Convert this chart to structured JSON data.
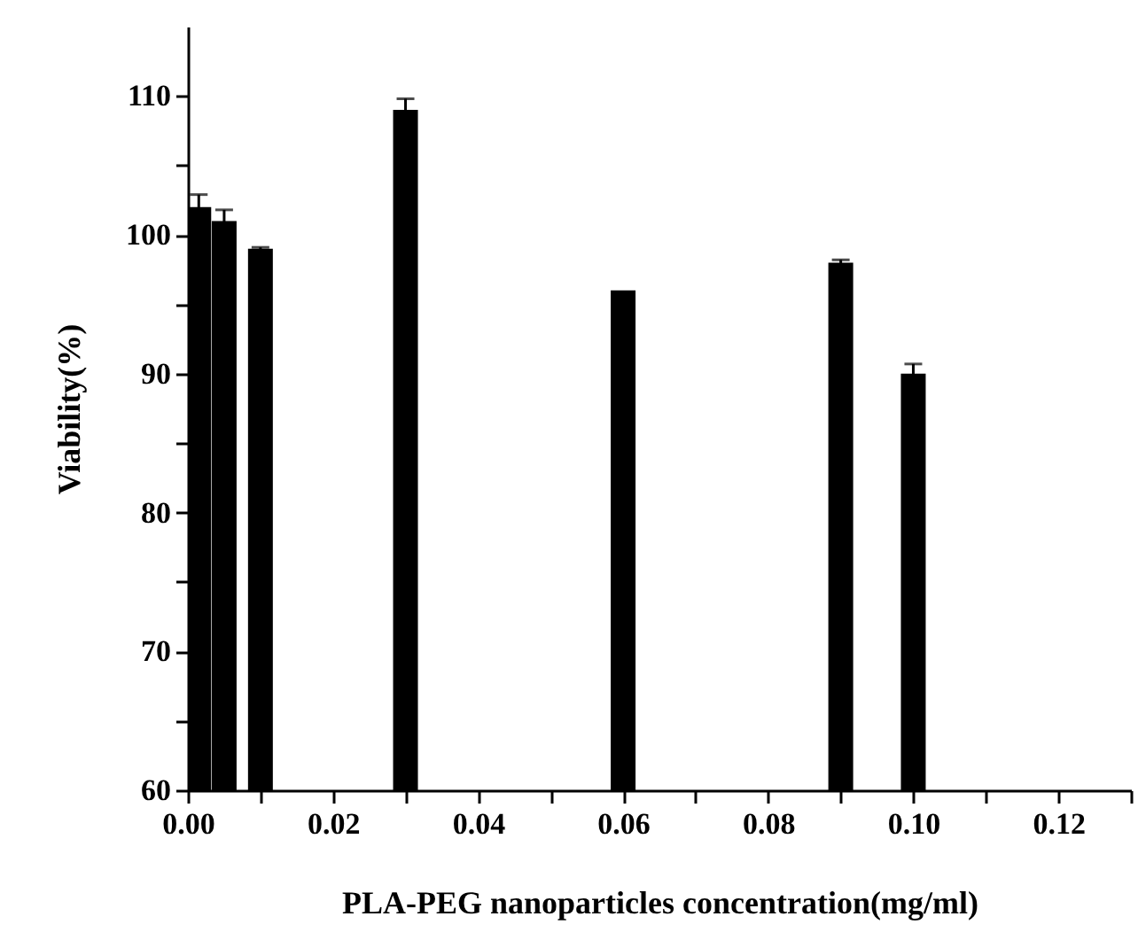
{
  "chart_data": {
    "type": "bar",
    "xlabel": "PLA-PEG nanoparticles concentration(mg/ml)",
    "ylabel": "Viability(%)",
    "x": [
      0.0015,
      0.005,
      0.01,
      0.03,
      0.06,
      0.09,
      0.1
    ],
    "values": [
      102.0,
      101.0,
      99.0,
      109.0,
      96.0,
      98.0,
      90.0
    ],
    "errors": [
      0.9,
      0.8,
      0.1,
      0.8,
      null,
      0.2,
      0.7
    ],
    "color": "#000000",
    "xlim": [
      0,
      0.13
    ],
    "xticks": [
      {
        "value": 0,
        "label": "0.00"
      },
      {
        "value": 0.01,
        "label": null
      },
      {
        "value": 0.02,
        "label": "0.02"
      },
      {
        "value": 0.03,
        "label": null
      },
      {
        "value": 0.04,
        "label": "0.04"
      },
      {
        "value": 0.05,
        "label": null
      },
      {
        "value": 0.06,
        "label": "0.06"
      },
      {
        "value": 0.07,
        "label": null
      },
      {
        "value": 0.08,
        "label": "0.08"
      },
      {
        "value": 0.09,
        "label": null
      },
      {
        "value": 0.1,
        "label": "0.10"
      },
      {
        "value": 0.11,
        "label": null
      },
      {
        "value": 0.12,
        "label": "0.12"
      },
      {
        "value": 0.13,
        "label": null
      }
    ],
    "ylim": [
      60,
      115
    ],
    "yticks": [
      60,
      {
        "value": 65,
        "label": null
      },
      70,
      {
        "value": 75,
        "label": null
      },
      80,
      {
        "value": 85,
        "label": null
      },
      90,
      {
        "value": 95,
        "label": null
      },
      100,
      {
        "value": 105,
        "label": null
      },
      110
    ]
  }
}
